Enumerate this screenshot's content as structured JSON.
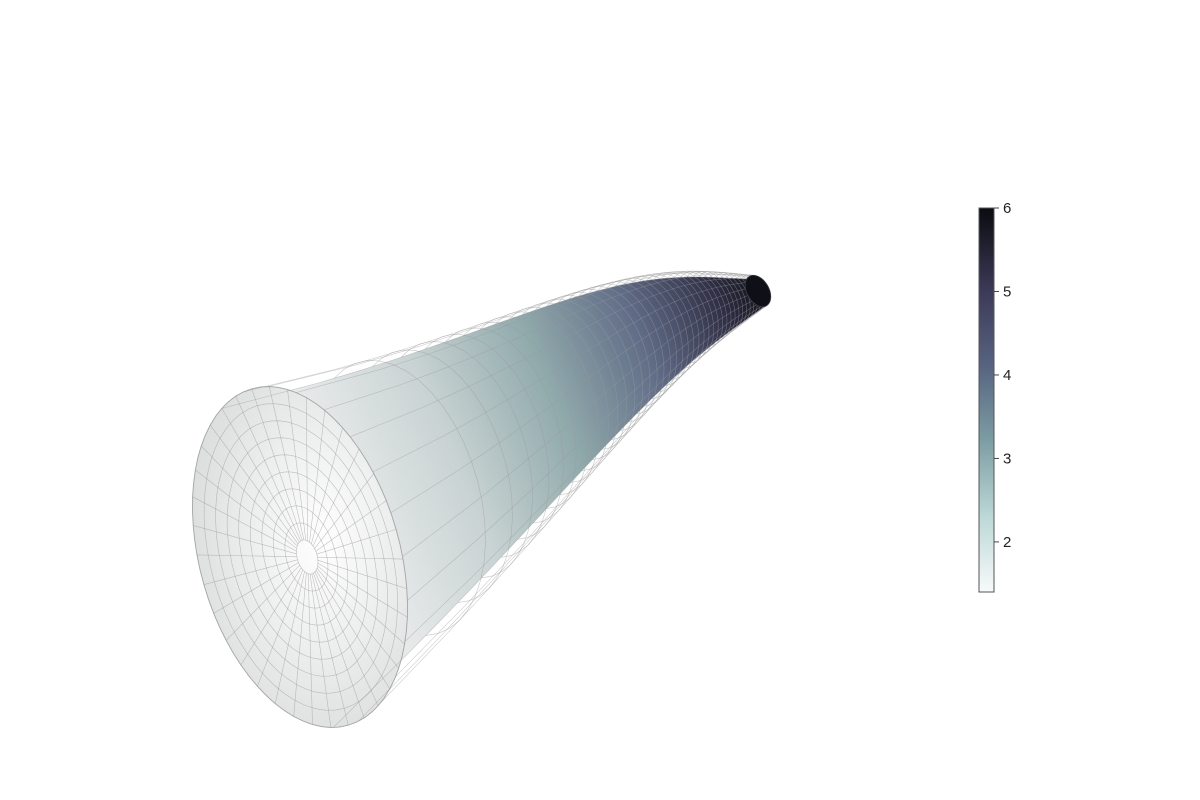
{
  "chart_data": {
    "type": "surface",
    "title": "",
    "xlabel": "",
    "ylabel": "",
    "zlabel": "",
    "surface": {
      "shape": "trumpet (horn) surface of revolution",
      "z_range": [
        1.4,
        6.0
      ],
      "mesh": {
        "u_lines": 40,
        "v_lines": 36,
        "line_color": "#9a9a9a"
      },
      "mouth_color": "#f2f4f4",
      "tube_end_color": "#0f0f17"
    },
    "colorbar": {
      "range": [
        1.4,
        6.0
      ],
      "ticks": [
        {
          "value": 2,
          "label": "2"
        },
        {
          "value": 3,
          "label": "3"
        },
        {
          "value": 4,
          "label": "4"
        },
        {
          "value": 5,
          "label": "5"
        },
        {
          "value": 6,
          "label": "6"
        }
      ],
      "colormap": [
        {
          "value": 1.4,
          "color": "#f7fafa"
        },
        {
          "value": 2.3,
          "color": "#bcd8d7"
        },
        {
          "value": 3.2,
          "color": "#7d9ea4"
        },
        {
          "value": 4.1,
          "color": "#576481"
        },
        {
          "value": 5.0,
          "color": "#3c3a58"
        },
        {
          "value": 6.0,
          "color": "#0b0b10"
        }
      ]
    }
  }
}
